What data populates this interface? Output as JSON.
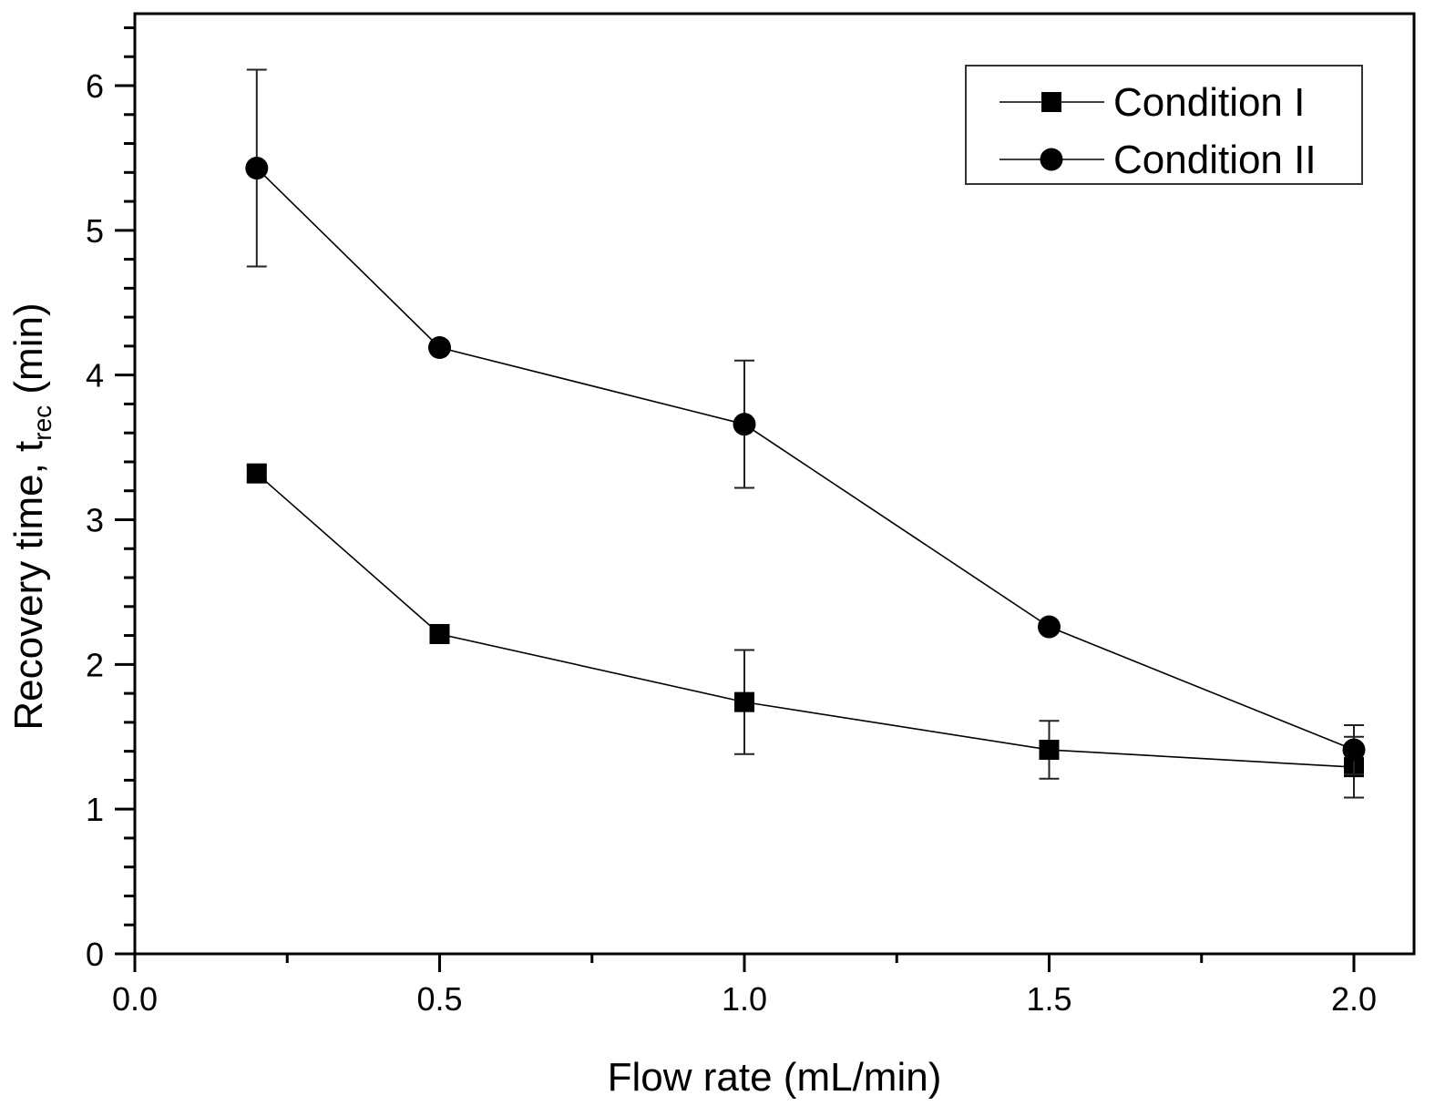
{
  "chart_data": {
    "type": "line",
    "title": "",
    "xlabel": "Flow rate (mL/min)",
    "ylabel": {
      "main": "Recovery time, t",
      "subscript": "rec",
      "unit": " (min)"
    },
    "xlim": [
      0,
      2.1
    ],
    "ylim": [
      0,
      6.5
    ],
    "x_ticks": [
      0.0,
      0.5,
      1.0,
      1.5,
      2.0
    ],
    "x_tick_labels": [
      "0.0",
      "0.5",
      "1.0",
      "1.5",
      "2.0"
    ],
    "x_minor_step": 0.25,
    "y_ticks": [
      0,
      1,
      2,
      3,
      4,
      5,
      6
    ],
    "y_tick_labels": [
      "0",
      "1",
      "2",
      "3",
      "4",
      "5",
      "6"
    ],
    "y_minor_step": 0.2,
    "grid": false,
    "legend_position": "top-right",
    "series": [
      {
        "name": "Condition I",
        "marker": "square",
        "color": "#000000",
        "x": [
          0.2,
          0.5,
          1.0,
          1.5,
          2.0
        ],
        "y": [
          3.32,
          2.21,
          1.74,
          1.41,
          1.29
        ],
        "error": [
          0.05,
          0.03,
          0.36,
          0.2,
          0.21
        ]
      },
      {
        "name": "Condition II",
        "marker": "circle",
        "color": "#000000",
        "x": [
          0.2,
          0.5,
          1.0,
          1.5,
          2.0
        ],
        "y": [
          5.43,
          4.19,
          3.66,
          2.26,
          1.41
        ],
        "error": [
          0.68,
          0.03,
          0.44,
          0.03,
          0.17
        ]
      }
    ]
  }
}
